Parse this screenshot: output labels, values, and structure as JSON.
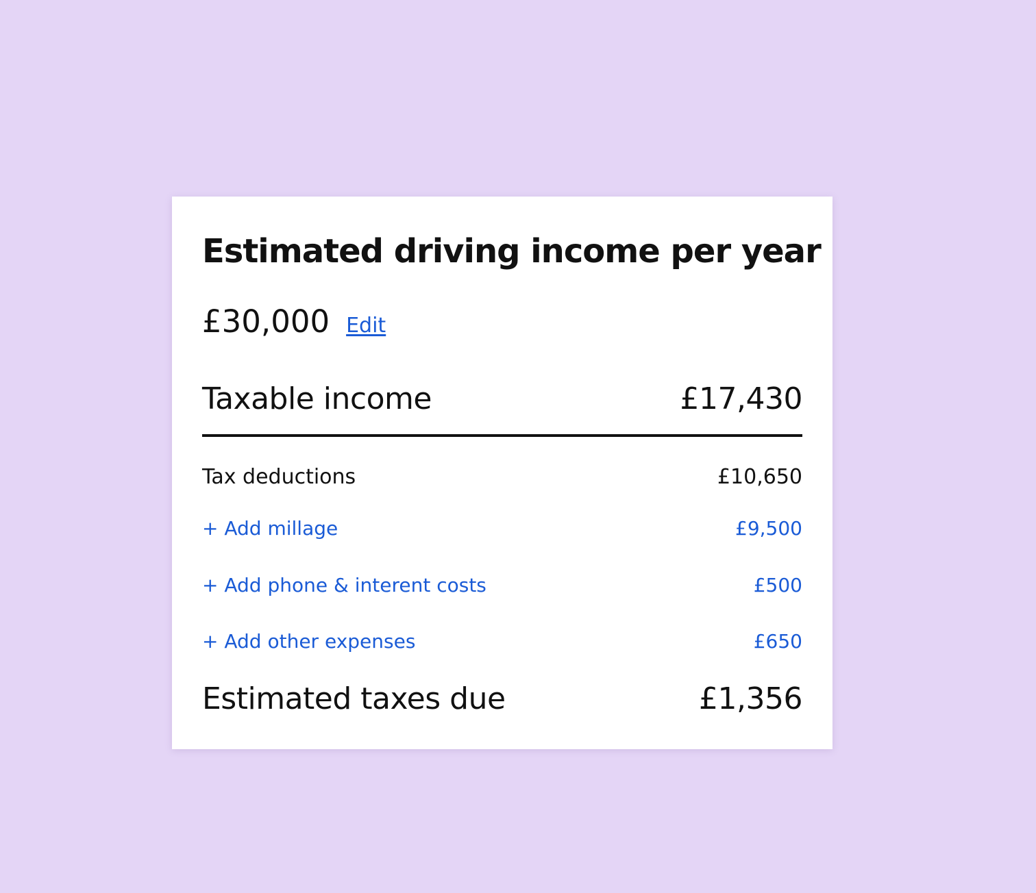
{
  "card": {
    "title": "Estimated driving income per year",
    "income_amount": "£30,000",
    "edit_label": "Edit",
    "taxable_income": {
      "label": "Taxable income",
      "value": "£17,430"
    },
    "tax_deductions": {
      "label": "Tax deductions",
      "value": "£10,650"
    },
    "deduction_items": [
      {
        "label": "+ Add millage",
        "value": "£9,500"
      },
      {
        "label": "+ Add phone & interent costs",
        "value": "£500"
      },
      {
        "label": "+ Add other expenses",
        "value": "£650"
      }
    ],
    "estimated_taxes_due": {
      "label": "Estimated taxes due",
      "value": "£1,356"
    }
  },
  "colors": {
    "page_background": "#e4d5f6",
    "card_background": "#ffffff",
    "link": "#1a5bd6",
    "text": "#111111"
  }
}
